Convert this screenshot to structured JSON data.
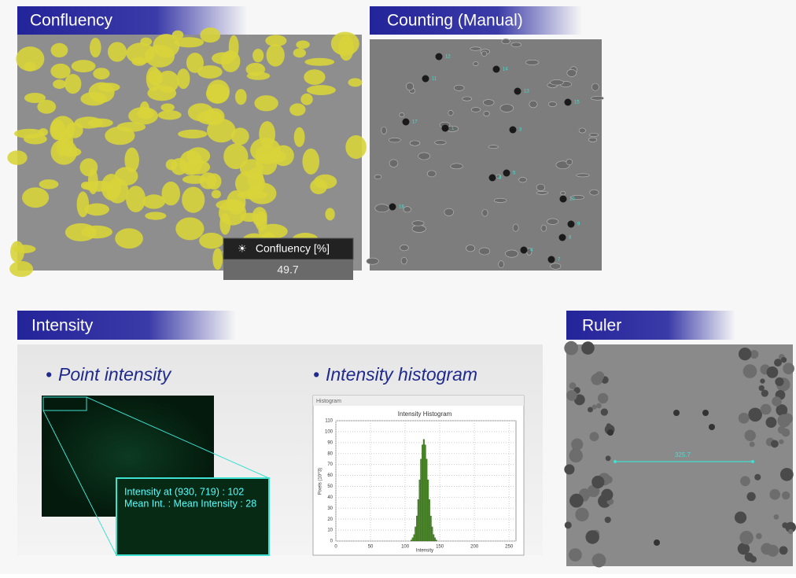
{
  "confluency": {
    "title": "Confluency",
    "readout_label": "Confluency [%]",
    "readout_value": "49.7"
  },
  "counting": {
    "title": "Counting (Manual)",
    "markers": [
      "12",
      "11",
      "14",
      "13",
      "15",
      "17",
      "1",
      "3",
      "5",
      "6",
      "18",
      "10",
      "9",
      "8",
      "4",
      "7"
    ]
  },
  "intensity": {
    "title": "Intensity",
    "point": {
      "heading": "Point intensity",
      "line1": "Intensity at (930, 719) : 102",
      "line2": "Mean Int. : Mean Intensity : 28"
    },
    "histogram": {
      "heading": "Intensity histogram",
      "window_title": "Histogram",
      "chart_title": "Intensity Histogram",
      "xlabel": "Intensity",
      "ylabel": "Pixels (10^3)",
      "xlim": [
        0,
        260
      ],
      "xticks": [
        0,
        50,
        100,
        150,
        200,
        250
      ],
      "ylim": [
        0,
        110
      ],
      "yticks": [
        0,
        10,
        20,
        30,
        40,
        50,
        60,
        70,
        80,
        90,
        100,
        110
      ],
      "color": "#4e8a2c",
      "bins": [
        104,
        106,
        108,
        110,
        112,
        114,
        116,
        118,
        120,
        122,
        124,
        126,
        128,
        130,
        132,
        134,
        136,
        138,
        140,
        142,
        144,
        146,
        148
      ],
      "counts": [
        0,
        0,
        1,
        3,
        6,
        13,
        23,
        38,
        56,
        75,
        88,
        93,
        88,
        75,
        56,
        38,
        23,
        13,
        6,
        3,
        1,
        0
      ]
    }
  },
  "ruler": {
    "title": "Ruler",
    "measurement": "325.7"
  }
}
